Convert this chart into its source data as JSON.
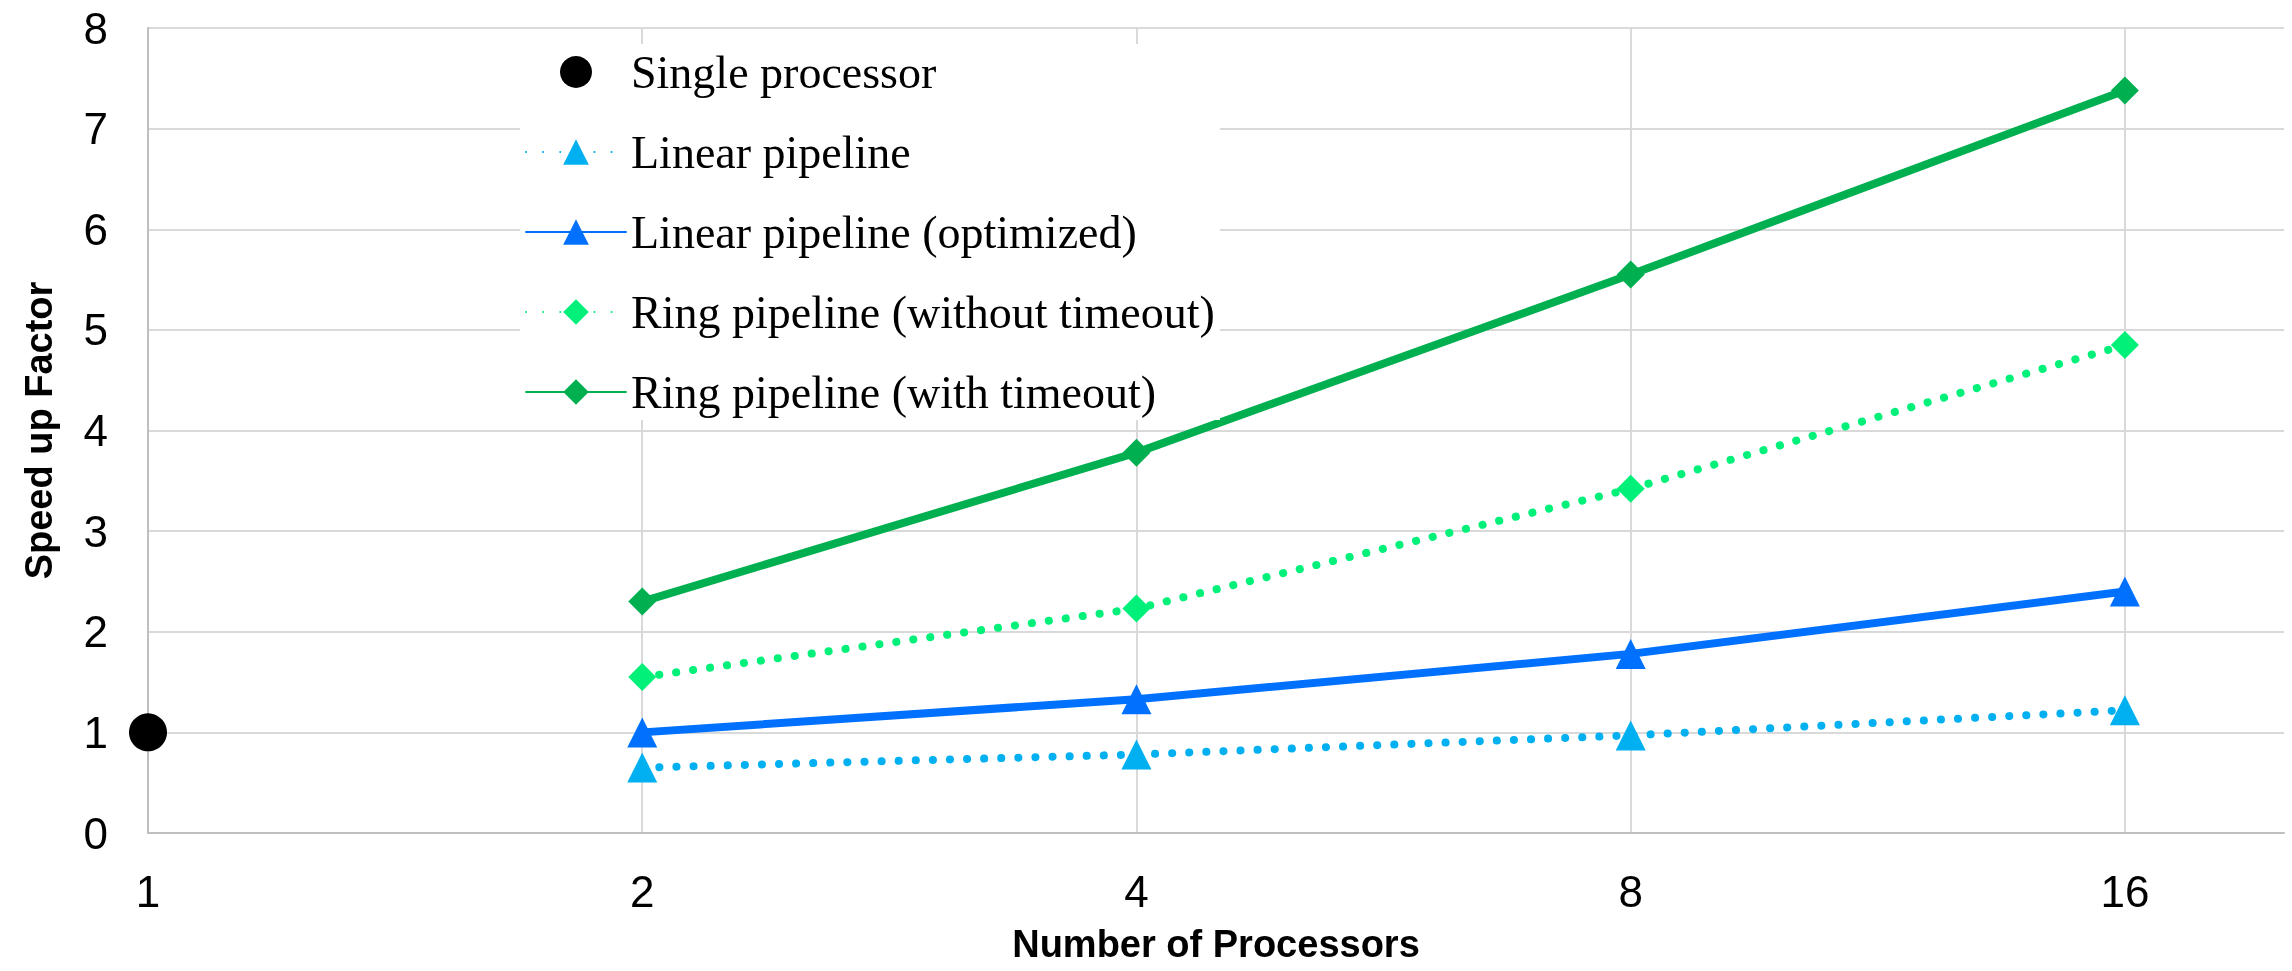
{
  "chart_data": {
    "type": "line",
    "xlabel": "Number of Processors",
    "ylabel": "Speed up Factor",
    "log": "x",
    "xlim": [
      1,
      20
    ],
    "xticks": [
      1,
      2,
      4,
      8,
      16
    ],
    "ylim": [
      0,
      8
    ],
    "yticks": [
      0,
      1,
      2,
      3,
      4,
      5,
      6,
      7,
      8
    ],
    "grid": true,
    "legend": "top left",
    "series": [
      {
        "name": "Single processor",
        "type": "scatter",
        "marker": "circle",
        "color": "#000000",
        "x": [
          1
        ],
        "values": [
          1
        ]
      },
      {
        "name": "Linear pipeline",
        "marker": "triangle",
        "line_style": "dotted",
        "color": "#00b0f0",
        "x": [
          2,
          4,
          8,
          16
        ],
        "values": [
          0.65,
          0.78,
          0.97,
          1.22
        ]
      },
      {
        "name": "Linear pipeline (optimized)",
        "marker": "triangle",
        "line_style": "solid",
        "color": "#0070ff",
        "x": [
          2,
          4,
          8,
          16
        ],
        "values": [
          1.0,
          1.33,
          1.78,
          2.4
        ]
      },
      {
        "name": "Ring pipeline (without timeout)",
        "marker": "diamond",
        "line_style": "dotted",
        "color": "#00f07a",
        "x": [
          2,
          4,
          8,
          16
        ],
        "values": [
          1.55,
          2.23,
          3.42,
          4.85
        ]
      },
      {
        "name": "Ring pipeline (with timeout)",
        "marker": "diamond",
        "line_style": "solid",
        "color": "#00b050",
        "x": [
          2,
          4,
          8,
          16
        ],
        "values": [
          2.3,
          3.78,
          5.55,
          7.38
        ]
      }
    ]
  }
}
